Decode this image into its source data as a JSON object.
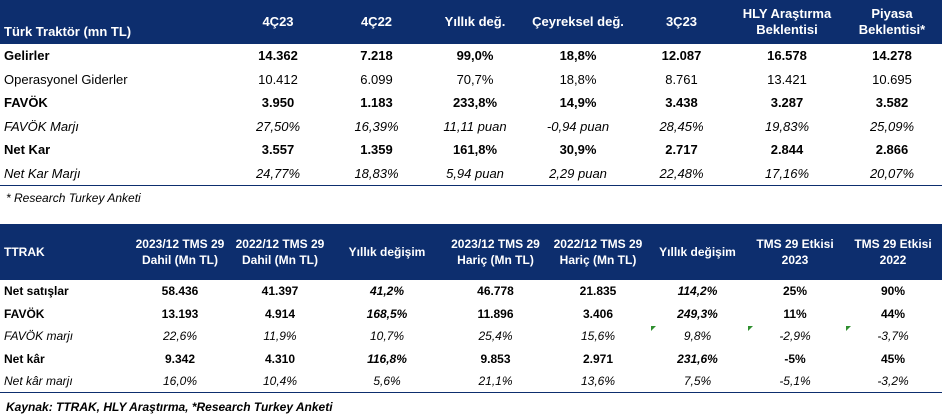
{
  "table1": {
    "headers": [
      "Türk Traktör (mn TL)",
      "4Ç23",
      "4Ç22",
      "Yıllık değ.",
      "Çeyreksel değ.",
      "3Ç23",
      "HLY Araştırma Beklentisi",
      "Piyasa Beklentisi*"
    ],
    "rows": [
      {
        "style": "bold",
        "cells": [
          "Gelirler",
          "14.362",
          "7.218",
          "99,0%",
          "18,8%",
          "12.087",
          "16.578",
          "14.278"
        ]
      },
      {
        "style": "normal",
        "cells": [
          "Operasyonel Giderler",
          "10.412",
          "6.099",
          "70,7%",
          "18,8%",
          "8.761",
          "13.421",
          "10.695"
        ]
      },
      {
        "style": "bold",
        "cells": [
          "FAVÖK",
          "3.950",
          "1.183",
          "233,8%",
          "14,9%",
          "3.438",
          "3.287",
          "3.582"
        ]
      },
      {
        "style": "ital",
        "cells": [
          "FAVÖK Marjı",
          "27,50%",
          "16,39%",
          "11,11 puan",
          "-0,94 puan",
          "28,45%",
          "19,83%",
          "25,09%"
        ]
      },
      {
        "style": "bold",
        "cells": [
          "Net Kar",
          "3.557",
          "1.359",
          "161,8%",
          "30,9%",
          "2.717",
          "2.844",
          "2.866"
        ]
      },
      {
        "style": "ital",
        "cells": [
          "Net Kar Marjı",
          "24,77%",
          "18,83%",
          "5,94 puan",
          "2,29 puan",
          "22,48%",
          "17,16%",
          "20,07%"
        ]
      }
    ],
    "note": "* Research Turkey Anketi"
  },
  "table2": {
    "headers": [
      "TTRAK",
      "2023/12 TMS 29 Dahil (Mn TL)",
      "2022/12 TMS 29 Dahil (Mn TL)",
      "Yıllık değişim",
      "2023/12 TMS 29 Hariç (Mn TL)",
      "2022/12 TMS 29 Hariç (Mn TL)",
      "Yıllık değişim",
      "TMS 29 Etkisi 2023",
      "TMS 29 Etkisi 2022"
    ],
    "rows": [
      {
        "style": "bold",
        "cells": [
          "Net satışlar",
          "58.436",
          "41.397",
          "41,2%",
          "46.778",
          "21.835",
          "114,2%",
          "25%",
          "90%"
        ]
      },
      {
        "style": "bold",
        "cells": [
          "FAVÖK",
          "13.193",
          "4.914",
          "168,5%",
          "11.896",
          "3.406",
          "249,3%",
          "11%",
          "44%"
        ]
      },
      {
        "style": "ital",
        "cells": [
          "FAVÖK marjı",
          "22,6%",
          "11,9%",
          "10,7%",
          "25,4%",
          "15,6%",
          "9,8%",
          "-2,9%",
          "-3,7%"
        ]
      },
      {
        "style": "bold",
        "cells": [
          "Net kâr",
          "9.342",
          "4.310",
          "116,8%",
          "9.853",
          "2.971",
          "231,6%",
          "-5%",
          "45%"
        ]
      },
      {
        "style": "ital",
        "cells": [
          "Net kâr marjı",
          "16,0%",
          "10,4%",
          "5,6%",
          "21,1%",
          "13,6%",
          "7,5%",
          "-5,1%",
          "-3,2%"
        ]
      }
    ],
    "note": "Kaynak: TTRAK, HLY Araştırma, *Research Turkey Anketi"
  },
  "colors": {
    "header_bg": "#0d2e6e",
    "header_text": "#ffffff",
    "flag": "#2f8f2f"
  }
}
